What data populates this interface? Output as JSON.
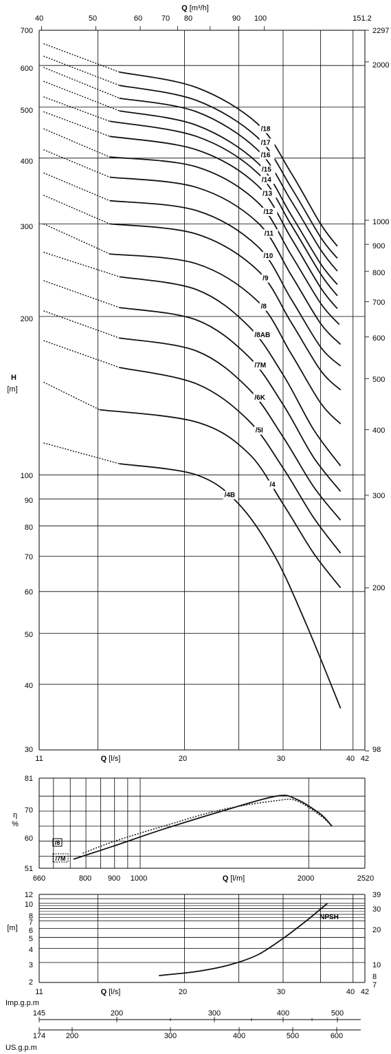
{
  "chart_data": [
    {
      "id": "head",
      "type": "line",
      "title": "",
      "ylabel": "H",
      "yunit": "[m]",
      "xlabel_bottom": "Q",
      "xunit_bottom": "[l/s]",
      "xlabel_top": "Q",
      "xunit_top": "[m³/h]",
      "xlim": [
        11,
        42
      ],
      "ylim": [
        30,
        700
      ],
      "yscale": "log",
      "xscale": "log",
      "grid": true,
      "x_ticks_bottom": [
        "11",
        "20",
        "30",
        "40",
        "42"
      ],
      "x_ticks_top": [
        "40",
        "50",
        "60",
        "70",
        "80",
        "90",
        "100",
        "151.2"
      ],
      "y_ticks_left": [
        "30",
        "40",
        "50",
        "60",
        "70",
        "80",
        "90",
        "100",
        "200",
        "300",
        "400",
        "500",
        "600",
        "700"
      ],
      "y_ticks_right": [
        "98",
        "200",
        "300",
        "400",
        "500",
        "600",
        "700",
        "800",
        "900",
        "1000",
        "2000",
        "2297"
      ],
      "series": [
        {
          "name": "/18",
          "label_x": 27.3,
          "points": [
            [
              11.2,
              660
            ],
            [
              15.3,
              583
            ],
            [
              21,
              545
            ],
            [
              27,
              465
            ],
            [
              31,
              375
            ],
            [
              35,
              300
            ],
            [
              37.5,
              272
            ]
          ]
        },
        {
          "name": "/17",
          "label_x": 27.3,
          "points": [
            [
              11.2,
              625
            ],
            [
              15.3,
              550
            ],
            [
              21,
              515
            ],
            [
              27,
              438
            ],
            [
              31,
              352
            ],
            [
              35,
              283
            ],
            [
              37.5,
              258
            ]
          ]
        },
        {
          "name": "/16",
          "label_x": 27.3,
          "points": [
            [
              11.2,
              595
            ],
            [
              15.3,
              520
            ],
            [
              21,
              490
            ],
            [
              27,
              415
            ],
            [
              31,
              332
            ],
            [
              35,
              268
            ],
            [
              37.5,
              244
            ]
          ]
        },
        {
          "name": "/15",
          "label_x": 27.4,
          "points": [
            [
              11.2,
              560
            ],
            [
              15.3,
              492
            ],
            [
              21,
              462
            ],
            [
              27,
              392
            ],
            [
              31,
              312
            ],
            [
              35,
              252
            ],
            [
              37.5,
              230
            ]
          ]
        },
        {
          "name": "/14",
          "label_x": 27.4,
          "points": [
            [
              11.2,
              523
            ],
            [
              14.7,
              470
            ],
            [
              21,
              440
            ],
            [
              27,
              375
            ],
            [
              31,
              299
            ],
            [
              35,
              241
            ],
            [
              37.5,
              219
            ]
          ]
        },
        {
          "name": "/13",
          "label_x": 27.5,
          "points": [
            [
              11.2,
              490
            ],
            [
              14.7,
              440
            ],
            [
              21,
              415
            ],
            [
              27,
              355
            ],
            [
              31,
              282
            ],
            [
              35,
              227
            ],
            [
              37.5,
              207
            ]
          ]
        },
        {
          "name": "/12",
          "label_x": 27.6,
          "points": [
            [
              11.2,
              455
            ],
            [
              14.7,
              402
            ],
            [
              21,
              385
            ],
            [
              27,
              330
            ],
            [
              31,
              262
            ],
            [
              35,
              212
            ],
            [
              37.8,
              193
            ]
          ]
        },
        {
          "name": "/11",
          "label_x": 27.7,
          "points": [
            [
              11.2,
              415
            ],
            [
              14.7,
              368
            ],
            [
              21,
              352
            ],
            [
              27,
              302
            ],
            [
              31,
              240
            ],
            [
              35,
              194
            ],
            [
              38,
              177
            ]
          ]
        },
        {
          "name": "/10",
          "label_x": 27.6,
          "points": [
            [
              11.2,
              375
            ],
            [
              14.7,
              332
            ],
            [
              21,
              318
            ],
            [
              27,
              272
            ],
            [
              31,
              216
            ],
            [
              35,
              175
            ],
            [
              38,
              161
            ]
          ]
        },
        {
          "name": "/9",
          "label_x": 27.5,
          "points": [
            [
              11.2,
              340
            ],
            [
              14.7,
              300
            ],
            [
              21,
              287
            ],
            [
              27,
              245
            ],
            [
              31,
              195
            ],
            [
              35,
              158
            ],
            [
              38,
              145
            ]
          ]
        },
        {
          "name": "/8",
          "label_x": 27.3,
          "points": [
            [
              11.2,
              300
            ],
            [
              14.7,
              263
            ],
            [
              21,
              252
            ],
            [
              27,
              214
            ],
            [
              31,
              170
            ],
            [
              35,
              137
            ],
            [
              38,
              125
            ]
          ]
        },
        {
          "name": "/8AB",
          "label_x": 26.6,
          "points": [
            [
              11.2,
              265
            ],
            [
              15.3,
              238
            ],
            [
              21,
              225
            ],
            [
              26,
              192
            ],
            [
              30,
              155
            ],
            [
              34,
              122
            ],
            [
              38,
              104
            ]
          ]
        },
        {
          "name": "/7M",
          "label_x": 26.6,
          "points": [
            [
              11.2,
              234
            ],
            [
              15.3,
              208
            ],
            [
              21,
              197
            ],
            [
              26,
              168
            ],
            [
              30,
              136
            ],
            [
              34,
              108
            ],
            [
              38,
              93
            ]
          ]
        },
        {
          "name": "/6K",
          "label_x": 26.6,
          "points": [
            [
              11.2,
              205
            ],
            [
              15.3,
              182
            ],
            [
              21,
              172
            ],
            [
              26,
              146
            ],
            [
              30,
              118
            ],
            [
              34,
              95
            ],
            [
              38,
              82
            ]
          ]
        },
        {
          "name": "/5I",
          "label_x": 26.7,
          "points": [
            [
              11.2,
              180
            ],
            [
              15.3,
              160
            ],
            [
              21,
              149
            ],
            [
              26,
              127
            ],
            [
              30,
              103
            ],
            [
              34,
              83
            ],
            [
              38,
              71
            ]
          ]
        },
        {
          "name": "/4",
          "label_x": 28.3,
          "points": [
            [
              11.2,
              150
            ],
            [
              14.1,
              133
            ],
            [
              21,
              126
            ],
            [
              26,
              110
            ],
            [
              30,
              88
            ],
            [
              34,
              71
            ],
            [
              38,
              61
            ]
          ]
        },
        {
          "name": "/4B",
          "label_x": 23.5,
          "points": [
            [
              11.2,
              115
            ],
            [
              15.3,
              105
            ],
            [
              21,
              100
            ],
            [
              25,
              88
            ],
            [
              29,
              70
            ],
            [
              33,
              52
            ],
            [
              38,
              36
            ]
          ]
        }
      ],
      "dotted_end_x": [
        15.3,
        15.3,
        15.3,
        15.3,
        14.7,
        14.7,
        14.7,
        14.7,
        14.7,
        14.7,
        14.7,
        15.3,
        15.3,
        15.3,
        15.3,
        14.1,
        15.3
      ],
      "colors": {
        "curve": "#111111",
        "grid": "#000000"
      }
    },
    {
      "id": "efficiency",
      "type": "line",
      "ylabel": "η",
      "yunit": "%",
      "xlabel": "Q",
      "xunit": "[l/m]",
      "xlim": [
        660,
        2520
      ],
      "ylim": [
        51,
        81
      ],
      "xscale": "log",
      "x_ticks": [
        "660",
        "800",
        "900",
        "1000",
        "2000",
        "2520"
      ],
      "y_ticks": [
        "51",
        "60",
        "70",
        "81"
      ],
      "legend": [
        "/8",
        "/7M"
      ],
      "series": [
        {
          "name": "/8",
          "style": "solid",
          "points": [
            [
              760,
              54
            ],
            [
              900,
              58.5
            ],
            [
              1100,
              64
            ],
            [
              1400,
              70
            ],
            [
              1750,
              75
            ],
            [
              1900,
              74
            ],
            [
              2100,
              69
            ],
            [
              2200,
              65
            ]
          ]
        },
        {
          "name": "/7M",
          "style": "dotted",
          "points": [
            [
              790,
              56
            ],
            [
              900,
              60
            ],
            [
              1100,
              65
            ],
            [
              1400,
              70.5
            ],
            [
              1750,
              73.5
            ],
            [
              1900,
              73.5
            ],
            [
              2100,
              68.5
            ],
            [
              2200,
              65
            ]
          ]
        }
      ]
    },
    {
      "id": "npsh",
      "type": "line",
      "ylabel": "[m]",
      "xlabel": "Q",
      "xunit": "[l/s]",
      "xlim": [
        11,
        42
      ],
      "ylim": [
        2,
        12
      ],
      "yscale": "log",
      "x_ticks": [
        "11",
        "20",
        "30",
        "40",
        "42"
      ],
      "y_ticks_left": [
        "2",
        "3",
        "4",
        "5",
        "6",
        "7",
        "8",
        "10",
        "12"
      ],
      "y_ticks_right": [
        "7",
        "8",
        "10",
        "20",
        "30",
        "39"
      ],
      "series": [
        {
          "name": "NPSH",
          "points": [
            [
              18,
              2.3
            ],
            [
              21,
              2.5
            ],
            [
              24,
              2.85
            ],
            [
              27,
              3.5
            ],
            [
              30,
              4.9
            ],
            [
              33,
              7
            ],
            [
              36,
              10
            ]
          ]
        }
      ]
    },
    {
      "id": "gpm-axes",
      "type": "axis",
      "imp_label": "Imp.g.p.m",
      "imp_ticks": [
        "145",
        "200",
        "300",
        "400",
        "500"
      ],
      "us_label": "US.g.p.m",
      "us_ticks": [
        "174",
        "200",
        "300",
        "400",
        "500",
        "600"
      ]
    }
  ]
}
